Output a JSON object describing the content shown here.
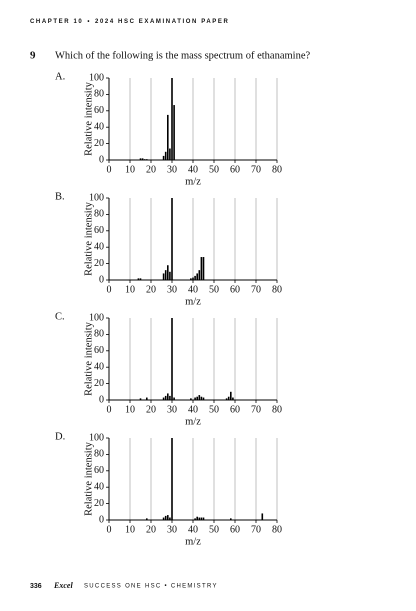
{
  "header": {
    "chapter": "CHAPTER 10",
    "separator": "•",
    "exam": "2024 HSC EXAMINATION PAPER"
  },
  "question": {
    "number": "9",
    "text": "Which of the following is the mass spectrum of ethanamine?"
  },
  "options": [
    "A.",
    "B.",
    "C.",
    "D."
  ],
  "chart_data": [
    {
      "type": "bar",
      "ylabel": "Relative intensity",
      "xlabel": "m/z",
      "color": "#000000",
      "grid": true,
      "x": [
        15,
        16,
        17,
        18,
        26,
        27,
        28,
        29,
        30,
        31
      ],
      "values": [
        2,
        2,
        1,
        1,
        5,
        10,
        55,
        14,
        100,
        67
      ],
      "xlim": [
        0,
        80
      ],
      "xticks": [
        0,
        10,
        20,
        30,
        40,
        50,
        60,
        70,
        80
      ],
      "ylim": [
        0,
        100
      ],
      "yticks": [
        0,
        20,
        40,
        60,
        80,
        100
      ]
    },
    {
      "type": "bar",
      "ylabel": "Relative intensity",
      "xlabel": "m/z",
      "color": "#000000",
      "grid": true,
      "x": [
        14,
        15,
        26,
        27,
        28,
        29,
        30,
        39,
        40,
        41,
        42,
        43,
        44,
        45
      ],
      "values": [
        2,
        2,
        8,
        12,
        18,
        10,
        100,
        2,
        3,
        5,
        8,
        12,
        28,
        28
      ],
      "xlim": [
        0,
        80
      ],
      "xticks": [
        0,
        10,
        20,
        30,
        40,
        50,
        60,
        70,
        80
      ],
      "ylim": [
        0,
        100
      ],
      "yticks": [
        0,
        20,
        40,
        60,
        80,
        100
      ]
    },
    {
      "type": "bar",
      "ylabel": "Relative intensity",
      "xlabel": "m/z",
      "color": "#000000",
      "grid": true,
      "x": [
        15,
        18,
        26,
        27,
        28,
        29,
        30,
        31,
        39,
        41,
        42,
        43,
        44,
        45,
        56,
        57,
        58,
        59
      ],
      "values": [
        2,
        3,
        3,
        5,
        8,
        5,
        100,
        3,
        2,
        3,
        4,
        6,
        4,
        3,
        2,
        4,
        10,
        3
      ],
      "xlim": [
        0,
        80
      ],
      "xticks": [
        0,
        10,
        20,
        30,
        40,
        50,
        60,
        70,
        80
      ],
      "ylim": [
        0,
        100
      ],
      "yticks": [
        0,
        20,
        40,
        60,
        80,
        100
      ]
    },
    {
      "type": "bar",
      "ylabel": "Relative intensity",
      "xlabel": "m/z",
      "color": "#000000",
      "grid": true,
      "x": [
        18,
        26,
        27,
        28,
        29,
        30,
        41,
        42,
        43,
        44,
        45,
        58,
        73
      ],
      "values": [
        2,
        3,
        5,
        6,
        3,
        100,
        2,
        4,
        3,
        3,
        3,
        2,
        8
      ],
      "xlim": [
        0,
        80
      ],
      "xticks": [
        0,
        10,
        20,
        30,
        40,
        50,
        60,
        70,
        80
      ],
      "ylim": [
        0,
        100
      ],
      "yticks": [
        0,
        20,
        40,
        60,
        80,
        100
      ]
    }
  ],
  "footer": {
    "page": "336",
    "brand": "Excel",
    "series": "SUCCESS ONE HSC • CHEMISTRY"
  }
}
